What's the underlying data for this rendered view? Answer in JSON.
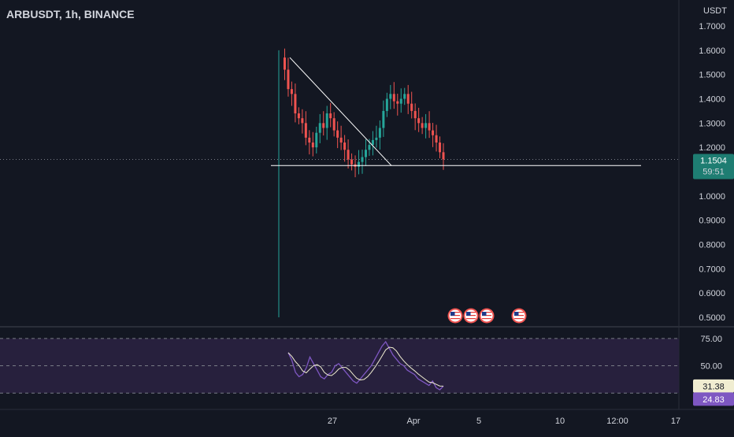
{
  "header": {
    "symbol_title": "ARBUSDT, 1h, BINANCE",
    "currency": "USDT"
  },
  "price_axis": {
    "ticks": [
      {
        "label": "1.7000",
        "value": 1.7
      },
      {
        "label": "1.6000",
        "value": 1.6
      },
      {
        "label": "1.5000",
        "value": 1.5
      },
      {
        "label": "1.4000",
        "value": 1.4
      },
      {
        "label": "1.3000",
        "value": 1.3
      },
      {
        "label": "1.2000",
        "value": 1.2
      },
      {
        "label": "1.0000",
        "value": 1.0
      },
      {
        "label": "0.9000",
        "value": 0.9
      },
      {
        "label": "0.8000",
        "value": 0.8
      },
      {
        "label": "0.7000",
        "value": 0.7
      },
      {
        "label": "0.6000",
        "value": 0.6
      },
      {
        "label": "0.5000",
        "value": 0.5
      }
    ],
    "current_price": "1.1504",
    "countdown": "59:51"
  },
  "rsi_axis": {
    "ticks": [
      {
        "label": "75.00",
        "value": 75
      },
      {
        "label": "50.00",
        "value": 50
      }
    ],
    "value_a": "31.38",
    "value_b": "24.83"
  },
  "time_axis": {
    "ticks": [
      "27",
      "Apr",
      "5",
      "10",
      "12:00",
      "17"
    ]
  },
  "colors": {
    "background": "#131722",
    "up": "#26a69a",
    "down": "#ef5350",
    "rsi_line": "#7e57c2",
    "rsi_band": "#2a2140",
    "price_badge": "#1e7d72",
    "rsi_badge_a": "#f0edd1",
    "rsi_badge_b": "#7e57c2",
    "drawing": "#ffffff"
  },
  "events": {
    "icon": "us-flag-icon",
    "count": 4
  },
  "chart_data": {
    "type": "candlestick",
    "title": "ARBUSDT, 1h, BINANCE",
    "currency": "USDT",
    "ylim": [
      0.47,
      1.73
    ],
    "price_series": [
      1.57,
      1.52,
      1.44,
      1.42,
      1.34,
      1.32,
      1.3,
      1.24,
      1.22,
      1.2,
      1.26,
      1.3,
      1.28,
      1.34,
      1.32,
      1.27,
      1.24,
      1.22,
      1.19,
      1.15,
      1.13,
      1.12,
      1.14,
      1.16,
      1.19,
      1.21,
      1.23,
      1.24,
      1.28,
      1.35,
      1.4,
      1.42,
      1.39,
      1.38,
      1.4,
      1.42,
      1.38,
      1.35,
      1.32,
      1.3,
      1.28,
      1.3,
      1.27,
      1.25,
      1.22,
      1.18,
      1.1504
    ],
    "spike_low": 0.5,
    "spike_high": 1.6,
    "current_price": 1.1504,
    "rsi_ylim": [
      10,
      85
    ],
    "rsi_levels": [
      75,
      50,
      25
    ],
    "rsi_series": [
      62,
      55,
      44,
      40,
      42,
      48,
      58,
      52,
      46,
      40,
      38,
      42,
      44,
      50,
      52,
      48,
      44,
      40,
      36,
      34,
      38,
      42,
      46,
      50,
      56,
      62,
      68,
      72,
      66,
      60,
      56,
      52,
      50,
      46,
      44,
      42,
      38,
      36,
      34,
      32,
      36,
      30,
      28,
      31.38
    ],
    "rsi_values": [
      31.38,
      24.83
    ],
    "x_tick_labels": [
      "27",
      "Apr",
      "5",
      "10",
      "12:00",
      "17"
    ]
  }
}
